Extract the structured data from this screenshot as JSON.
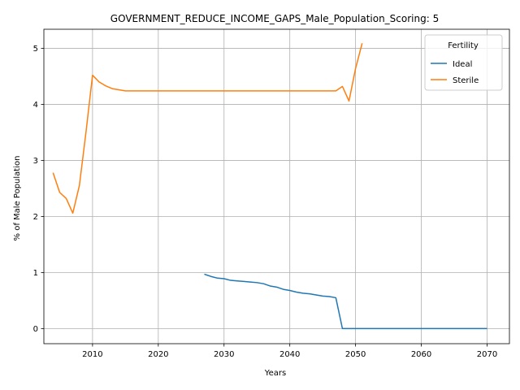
{
  "chart_data": {
    "type": "line",
    "title": "GOVERNMENT_REDUCE_INCOME_GAPS_Male_Population_Scoring: 5",
    "xlabel": "Years",
    "ylabel": "% of Male Population",
    "xlim": [
      2002.6,
      2073.4
    ],
    "ylim": [
      -0.27,
      5.34
    ],
    "xticks": [
      2010,
      2020,
      2030,
      2040,
      2050,
      2060,
      2070
    ],
    "yticks": [
      0,
      1,
      2,
      3,
      4,
      5
    ],
    "grid": true,
    "legend": {
      "title": "Fertility",
      "position": "top-right"
    },
    "series": [
      {
        "name": "Ideal",
        "color": "#1f77b4",
        "x": [
          2027,
          2028,
          2029,
          2030,
          2031,
          2032,
          2033,
          2034,
          2035,
          2036,
          2037,
          2038,
          2039,
          2040,
          2041,
          2042,
          2043,
          2044,
          2045,
          2046,
          2047,
          2048,
          2049,
          2050,
          2051,
          2052,
          2053,
          2054,
          2055,
          2056,
          2057,
          2058,
          2059,
          2060,
          2061,
          2062,
          2063,
          2064,
          2065,
          2066,
          2067,
          2068,
          2069,
          2070
        ],
        "y": [
          0.97,
          0.93,
          0.9,
          0.89,
          0.86,
          0.85,
          0.84,
          0.83,
          0.82,
          0.8,
          0.76,
          0.74,
          0.7,
          0.68,
          0.65,
          0.63,
          0.62,
          0.6,
          0.58,
          0.57,
          0.55,
          0.0,
          0.0,
          0.0,
          0.0,
          0.0,
          0.0,
          0.0,
          0.0,
          0.0,
          0.0,
          0.0,
          0.0,
          0.0,
          0.0,
          0.0,
          0.0,
          0.0,
          0.0,
          0.0,
          0.0,
          0.0,
          0.0,
          0.0
        ]
      },
      {
        "name": "Sterile",
        "color": "#ff7f0e",
        "x": [
          2004,
          2005,
          2006,
          2007,
          2008,
          2009,
          2010,
          2011,
          2012,
          2013,
          2014,
          2015,
          2016,
          2017,
          2018,
          2019,
          2020,
          2021,
          2022,
          2023,
          2024,
          2025,
          2026,
          2027,
          2028,
          2029,
          2030,
          2031,
          2032,
          2033,
          2034,
          2035,
          2036,
          2037,
          2038,
          2039,
          2040,
          2041,
          2042,
          2043,
          2044,
          2045,
          2046,
          2047,
          2048,
          2049,
          2050,
          2051
        ],
        "y": [
          2.78,
          2.43,
          2.32,
          2.06,
          2.55,
          3.5,
          4.52,
          4.4,
          4.33,
          4.28,
          4.26,
          4.24,
          4.24,
          4.24,
          4.24,
          4.24,
          4.24,
          4.24,
          4.24,
          4.24,
          4.24,
          4.24,
          4.24,
          4.24,
          4.24,
          4.24,
          4.24,
          4.24,
          4.24,
          4.24,
          4.24,
          4.24,
          4.24,
          4.24,
          4.24,
          4.24,
          4.24,
          4.24,
          4.24,
          4.24,
          4.24,
          4.24,
          4.24,
          4.24,
          4.32,
          4.06,
          4.64,
          5.09
        ]
      }
    ]
  }
}
